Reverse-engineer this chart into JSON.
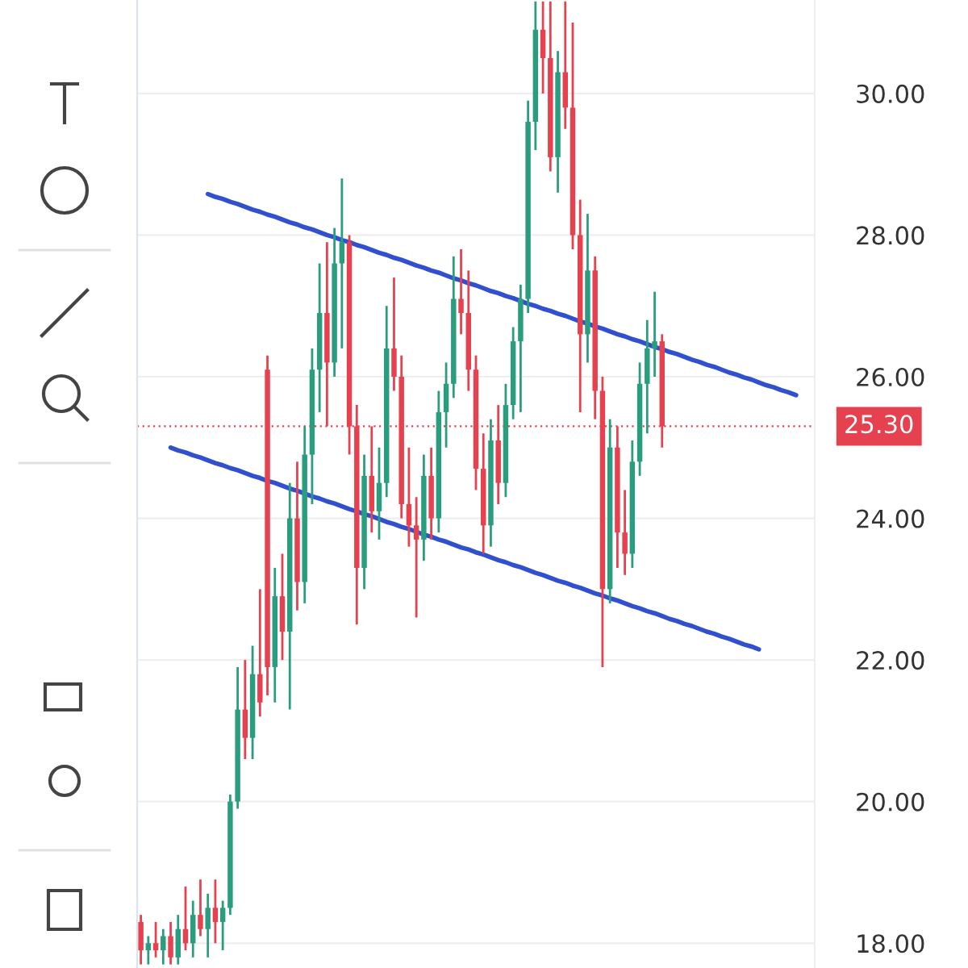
{
  "chart_data": {
    "type": "candlestick",
    "categories": [
      null,
      null,
      null,
      null,
      null,
      null,
      null,
      null,
      null,
      null,
      null,
      null,
      null,
      null,
      null,
      null,
      null,
      null,
      null,
      null,
      null,
      null,
      null,
      null,
      null,
      null,
      null,
      null,
      null,
      null,
      null,
      null,
      null,
      null,
      null,
      null,
      null,
      null,
      null,
      null,
      null,
      null,
      null,
      null,
      null,
      null,
      null,
      null,
      null,
      null,
      null,
      null,
      null,
      null,
      null,
      null,
      null,
      null,
      null,
      null,
      null,
      null,
      null,
      null,
      null,
      null,
      null,
      null,
      null,
      null,
      null,
      null,
      null,
      null,
      null,
      null,
      null,
      null,
      null,
      null,
      null,
      null,
      null,
      null,
      null,
      null,
      null,
      null,
      null,
      null,
      null
    ],
    "ohlc": [
      [
        18.3,
        18.4,
        17.7,
        17.9
      ],
      [
        17.9,
        18.1,
        17.7,
        18.0
      ],
      [
        18.0,
        18.3,
        17.8,
        17.9
      ],
      [
        17.9,
        18.2,
        17.7,
        18.1
      ],
      [
        18.1,
        18.3,
        17.7,
        17.8
      ],
      [
        17.8,
        18.4,
        17.7,
        18.2
      ],
      [
        18.2,
        18.8,
        17.9,
        18.0
      ],
      [
        18.0,
        18.6,
        17.8,
        18.4
      ],
      [
        18.4,
        18.9,
        18.1,
        18.2
      ],
      [
        18.2,
        18.7,
        17.8,
        18.5
      ],
      [
        18.5,
        18.9,
        18.0,
        18.3
      ],
      [
        18.3,
        18.6,
        17.9,
        18.5
      ],
      [
        18.5,
        20.1,
        18.4,
        20.0
      ],
      [
        20.0,
        21.9,
        19.9,
        21.3
      ],
      [
        21.3,
        22.0,
        20.6,
        20.9
      ],
      [
        20.9,
        22.2,
        20.6,
        21.8
      ],
      [
        21.8,
        23.0,
        21.2,
        21.4
      ],
      [
        26.1,
        26.3,
        21.5,
        21.9
      ],
      [
        21.9,
        23.3,
        21.4,
        22.9
      ],
      [
        22.9,
        23.5,
        22.0,
        22.4
      ],
      [
        22.4,
        24.5,
        21.3,
        24.0
      ],
      [
        24.0,
        24.8,
        22.7,
        23.1
      ],
      [
        23.1,
        25.3,
        22.8,
        24.9
      ],
      [
        24.9,
        26.4,
        24.2,
        26.1
      ],
      [
        26.1,
        27.6,
        25.5,
        26.9
      ],
      [
        26.9,
        27.9,
        25.3,
        26.2
      ],
      [
        26.2,
        28.1,
        26.0,
        27.6
      ],
      [
        27.6,
        28.8,
        26.4,
        27.9
      ],
      [
        27.9,
        28.0,
        24.9,
        25.3
      ],
      [
        25.3,
        25.6,
        22.5,
        23.3
      ],
      [
        23.3,
        24.9,
        23.0,
        24.6
      ],
      [
        24.6,
        25.3,
        23.8,
        24.1
      ],
      [
        24.1,
        25.0,
        23.7,
        24.5
      ],
      [
        24.5,
        27.0,
        24.3,
        26.4
      ],
      [
        26.4,
        27.4,
        25.8,
        26.0
      ],
      [
        26.0,
        26.3,
        24.0,
        24.2
      ],
      [
        24.2,
        25.0,
        23.6,
        23.9
      ],
      [
        23.9,
        24.3,
        22.6,
        23.7
      ],
      [
        23.7,
        24.9,
        23.4,
        24.6
      ],
      [
        24.6,
        25.0,
        23.7,
        24.0
      ],
      [
        24.0,
        25.8,
        23.8,
        25.5
      ],
      [
        25.5,
        26.2,
        25.0,
        25.9
      ],
      [
        25.9,
        27.7,
        25.7,
        27.1
      ],
      [
        27.1,
        27.8,
        26.6,
        26.9
      ],
      [
        26.9,
        27.5,
        25.8,
        26.1
      ],
      [
        26.1,
        26.3,
        24.4,
        24.7
      ],
      [
        24.7,
        25.2,
        23.5,
        23.9
      ],
      [
        23.9,
        25.4,
        23.6,
        25.1
      ],
      [
        25.1,
        25.6,
        24.2,
        24.5
      ],
      [
        24.5,
        25.9,
        24.3,
        25.6
      ],
      [
        25.6,
        26.7,
        25.4,
        26.5
      ],
      [
        26.5,
        27.3,
        25.5,
        27.1
      ],
      [
        27.1,
        29.9,
        26.9,
        29.6
      ],
      [
        29.6,
        31.3,
        29.2,
        30.9
      ],
      [
        30.9,
        31.3,
        30.0,
        30.5
      ],
      [
        30.5,
        31.3,
        28.9,
        29.1
      ],
      [
        29.1,
        30.6,
        28.6,
        30.3
      ],
      [
        30.3,
        31.3,
        29.5,
        29.8
      ],
      [
        29.8,
        31.0,
        27.8,
        28.0
      ],
      [
        28.0,
        28.5,
        25.5,
        26.6
      ],
      [
        26.6,
        28.3,
        26.2,
        27.5
      ],
      [
        27.5,
        27.7,
        25.4,
        25.8
      ],
      [
        25.8,
        26.0,
        21.9,
        23.0
      ],
      [
        23.0,
        25.4,
        22.8,
        25.0
      ],
      [
        25.0,
        25.3,
        23.3,
        23.8
      ],
      [
        23.8,
        24.4,
        23.2,
        23.5
      ],
      [
        23.5,
        25.1,
        23.3,
        24.8
      ],
      [
        24.8,
        26.2,
        24.6,
        25.9
      ],
      [
        25.9,
        26.8,
        25.2,
        26.4
      ],
      [
        26.4,
        27.2,
        26.0,
        26.5
      ],
      [
        26.5,
        26.6,
        25.0,
        25.3
      ],
      null,
      null,
      null,
      null,
      null,
      null,
      null,
      null,
      null,
      null,
      null,
      null,
      null,
      null,
      null,
      null,
      null,
      null,
      null,
      null
    ],
    "series": [
      {
        "type": "line",
        "color": "#3050d0",
        "values": [
          null,
          null,
          null,
          null,
          null,
          null,
          null,
          null,
          null,
          28.58,
          28.54,
          28.51,
          28.47,
          28.44,
          28.4,
          28.36,
          28.33,
          28.29,
          28.26,
          28.22,
          28.18,
          28.15,
          28.11,
          28.08,
          28.04,
          28.0,
          27.97,
          27.93,
          27.9,
          27.86,
          27.83,
          27.79,
          27.75,
          27.72,
          27.68,
          27.65,
          27.61,
          27.57,
          27.54,
          27.5,
          27.47,
          27.43,
          27.39,
          27.36,
          27.32,
          27.29,
          27.25,
          27.21,
          27.18,
          27.14,
          27.11,
          27.07,
          27.03,
          27.0,
          26.96,
          26.93,
          26.89,
          26.86,
          26.82,
          26.78,
          26.75,
          26.71,
          26.68,
          26.64,
          26.6,
          26.57,
          26.53,
          26.5,
          26.46,
          26.42,
          26.39,
          26.35,
          26.32,
          26.28,
          26.24,
          26.21,
          26.17,
          26.14,
          26.1,
          26.06,
          26.03,
          25.99,
          25.96,
          25.92,
          25.88,
          25.85,
          25.81,
          25.78,
          25.74,
          null,
          null
        ]
      },
      {
        "type": "line",
        "color": "#3050d0",
        "values": [
          null,
          null,
          null,
          null,
          25.0,
          24.96,
          24.93,
          24.89,
          24.86,
          24.82,
          24.78,
          24.75,
          24.71,
          24.68,
          24.64,
          24.6,
          24.57,
          24.53,
          24.5,
          24.46,
          24.42,
          24.39,
          24.35,
          24.31,
          24.28,
          24.24,
          24.21,
          24.17,
          24.13,
          24.1,
          24.06,
          24.03,
          23.99,
          23.95,
          23.92,
          23.88,
          23.85,
          23.81,
          23.77,
          23.74,
          23.7,
          23.67,
          23.63,
          23.59,
          23.56,
          23.52,
          23.49,
          23.45,
          23.41,
          23.38,
          23.34,
          23.31,
          23.27,
          23.23,
          23.2,
          23.16,
          23.12,
          23.09,
          23.05,
          23.02,
          22.98,
          22.94,
          22.91,
          22.87,
          22.84,
          22.8,
          22.76,
          22.73,
          22.69,
          22.66,
          22.62,
          22.58,
          22.55,
          22.51,
          22.48,
          22.44,
          22.4,
          22.37,
          22.33,
          22.3,
          22.26,
          22.22,
          22.19,
          22.15,
          null,
          null,
          null,
          null,
          null,
          null,
          null
        ]
      }
    ],
    "ylim": [
      17.65,
      31.32
    ],
    "yticks": [
      {
        "value": 18,
        "label": "18.00"
      },
      {
        "value": 20,
        "label": "20.00"
      },
      {
        "value": 22,
        "label": "22.00"
      },
      {
        "value": 24,
        "label": "24.00"
      },
      {
        "value": 26,
        "label": "26.00"
      },
      {
        "value": 28,
        "label": "28.00"
      },
      {
        "value": 30,
        "label": "30.00"
      }
    ],
    "ref_lines": [
      {
        "axis": "y",
        "value": 25.3,
        "label": "25.30",
        "color": "#e5414f",
        "line_style": "dotted"
      }
    ],
    "grid": "y",
    "tick_labels": "y"
  }
}
